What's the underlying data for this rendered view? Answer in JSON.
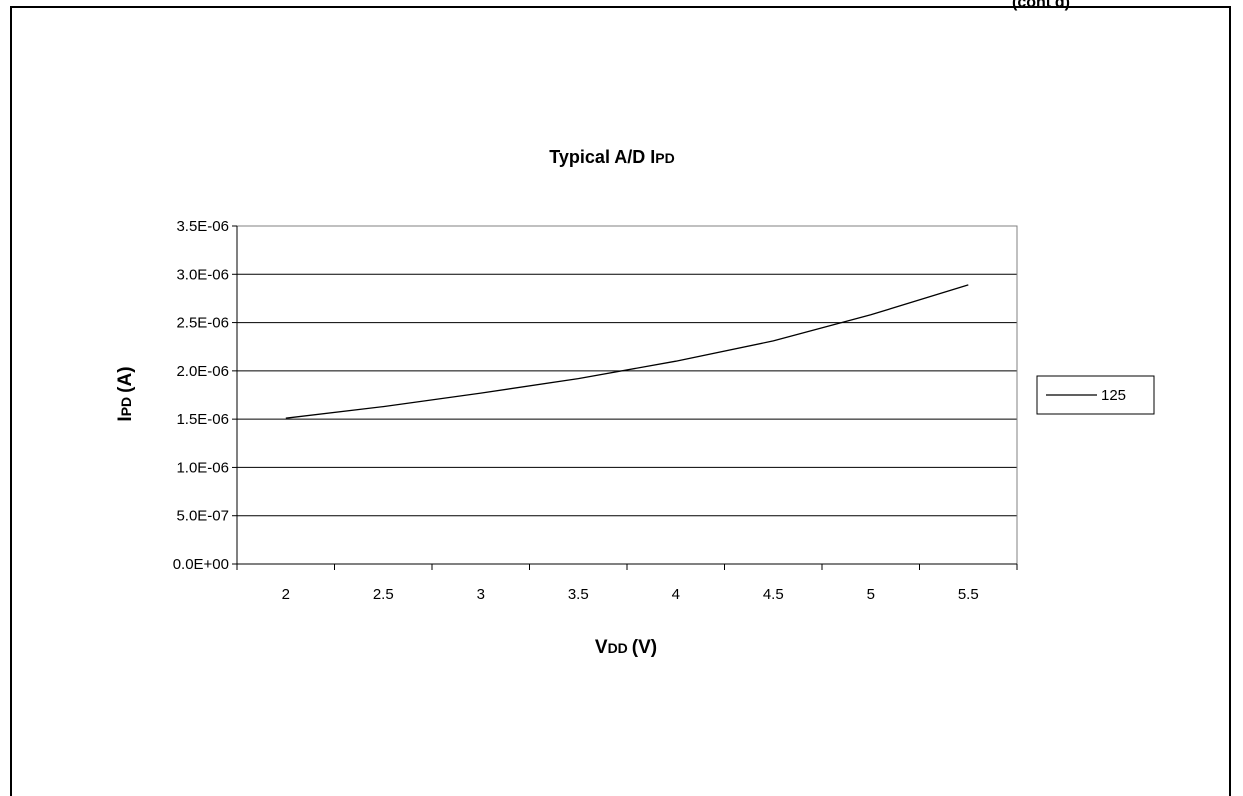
{
  "page": {
    "clipped_header": "(cont'd)"
  },
  "chart_data": {
    "type": "line",
    "title_main": "Typical A/D I",
    "title_sub": "PD",
    "xlabel_main": "V",
    "xlabel_sub": "DD",
    "xlabel_unit": "(V)",
    "ylabel_main": "I",
    "ylabel_sub": "PD",
    "ylabel_unit": "(A)",
    "x": [
      2,
      2.5,
      3,
      3.5,
      4,
      4.5,
      5,
      5.5
    ],
    "x_tick_labels": [
      "2",
      "2.5",
      "3",
      "3.5",
      "4",
      "4.5",
      "5",
      "5.5"
    ],
    "y_tick_labels": [
      "0.0E+00",
      "5.0E-07",
      "1.0E-06",
      "1.5E-06",
      "2.0E-06",
      "2.5E-06",
      "3.0E-06",
      "3.5E-06"
    ],
    "ylim": [
      0,
      3.5e-06
    ],
    "grid": true,
    "legend": "right",
    "series": [
      {
        "name": "125",
        "color": "#000000",
        "values": [
          1.51e-06,
          1.63e-06,
          1.77e-06,
          1.92e-06,
          2.1e-06,
          2.31e-06,
          2.58e-06,
          2.89e-06
        ]
      }
    ]
  }
}
